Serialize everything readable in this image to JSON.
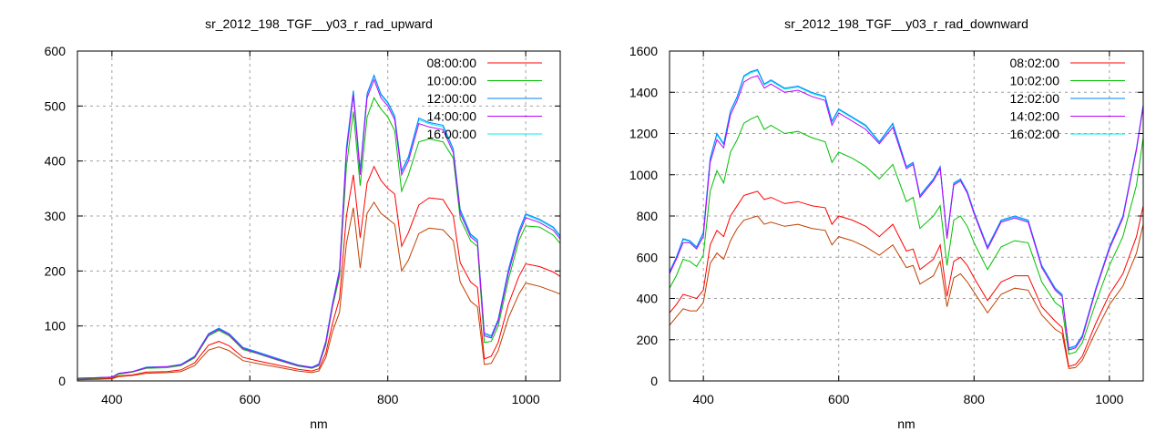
{
  "chart_data": [
    {
      "type": "line",
      "title": "sr_2012_198_TGF__y03_r_rad_upward",
      "xlabel": "nm",
      "ylabel": "",
      "xlim": [
        350,
        1050
      ],
      "ylim": [
        0,
        600
      ],
      "xticks": [
        400,
        600,
        800,
        1000
      ],
      "yticks": [
        0,
        100,
        200,
        300,
        400,
        500,
        600
      ],
      "grid": true,
      "legend_position": "top-right",
      "x": [
        350,
        380,
        400,
        410,
        430,
        450,
        480,
        500,
        520,
        540,
        555,
        570,
        590,
        610,
        640,
        670,
        690,
        700,
        710,
        720,
        730,
        740,
        750,
        760,
        770,
        780,
        790,
        800,
        810,
        820,
        830,
        845,
        860,
        880,
        895,
        905,
        920,
        930,
        940,
        950,
        960,
        975,
        990,
        1000,
        1020,
        1040,
        1050
      ],
      "series": [
        {
          "name": "16:00:00",
          "color": "#00eeee",
          "values": [
            5,
            6,
            7,
            14,
            17,
            25,
            26,
            30,
            45,
            85,
            95,
            85,
            60,
            52,
            40,
            28,
            24,
            30,
            70,
            140,
            200,
            420,
            525,
            380,
            520,
            555,
            520,
            505,
            480,
            380,
            405,
            475,
            468,
            462,
            420,
            310,
            265,
            255,
            85,
            80,
            110,
            200,
            270,
            302,
            292,
            278,
            262
          ]
        },
        {
          "name": "",
          "color": "#c04000",
          "values": [
            2,
            3,
            4,
            8,
            10,
            14,
            15,
            17,
            28,
            56,
            62,
            55,
            37,
            32,
            25,
            18,
            15,
            18,
            42,
            90,
            125,
            250,
            315,
            205,
            305,
            325,
            305,
            295,
            285,
            200,
            220,
            268,
            278,
            275,
            255,
            180,
            145,
            135,
            30,
            32,
            55,
            115,
            158,
            178,
            172,
            163,
            158
          ]
        },
        {
          "name": "08:00:00",
          "color": "#ff0000",
          "values": [
            3,
            4,
            5,
            9,
            11,
            16,
            17,
            20,
            33,
            65,
            72,
            64,
            43,
            37,
            29,
            21,
            18,
            22,
            50,
            105,
            150,
            300,
            375,
            260,
            360,
            390,
            365,
            350,
            340,
            245,
            270,
            320,
            333,
            330,
            300,
            215,
            180,
            170,
            40,
            45,
            70,
            140,
            190,
            213,
            208,
            198,
            190
          ]
        },
        {
          "name": "10:00:00",
          "color": "#00c000",
          "values": [
            4,
            5,
            6,
            12,
            16,
            23,
            24,
            28,
            42,
            82,
            92,
            82,
            57,
            50,
            38,
            27,
            23,
            28,
            65,
            135,
            190,
            390,
            490,
            355,
            480,
            515,
            495,
            480,
            455,
            345,
            375,
            435,
            440,
            435,
            405,
            295,
            255,
            245,
            70,
            72,
            100,
            185,
            255,
            282,
            280,
            265,
            250
          ]
        },
        {
          "name": "12:00:00",
          "color": "#0080ff",
          "values": [
            5,
            6,
            7,
            14,
            17,
            25,
            26,
            30,
            45,
            86,
            96,
            86,
            61,
            53,
            41,
            29,
            25,
            31,
            72,
            142,
            203,
            425,
            528,
            383,
            523,
            556,
            522,
            507,
            482,
            382,
            408,
            478,
            470,
            465,
            422,
            312,
            267,
            257,
            87,
            82,
            112,
            203,
            273,
            304,
            294,
            280,
            264
          ]
        },
        {
          "name": "14:00:00",
          "color": "#c000ff",
          "values": [
            5,
            6,
            7,
            14,
            17,
            24,
            26,
            29,
            44,
            84,
            94,
            84,
            59,
            51,
            39,
            28,
            24,
            29,
            69,
            138,
            198,
            415,
            520,
            375,
            515,
            548,
            515,
            500,
            475,
            375,
            400,
            468,
            462,
            457,
            415,
            305,
            262,
            252,
            82,
            78,
            108,
            196,
            266,
            297,
            288,
            274,
            258
          ]
        }
      ]
    },
    {
      "type": "line",
      "title": "sr_2012_198_TGF__y03_r_rad_downward",
      "xlabel": "nm",
      "ylabel": "",
      "xlim": [
        350,
        1050
      ],
      "ylim": [
        0,
        1600
      ],
      "xticks": [
        400,
        600,
        800,
        1000
      ],
      "yticks": [
        0,
        200,
        400,
        600,
        800,
        1000,
        1200,
        1400,
        1600
      ],
      "grid": true,
      "legend_position": "top-right",
      "x": [
        350,
        360,
        370,
        380,
        390,
        400,
        410,
        420,
        430,
        440,
        450,
        460,
        470,
        480,
        490,
        500,
        520,
        540,
        560,
        580,
        590,
        600,
        620,
        640,
        660,
        680,
        700,
        710,
        720,
        740,
        750,
        760,
        770,
        780,
        790,
        800,
        820,
        840,
        860,
        880,
        900,
        920,
        930,
        940,
        950,
        960,
        980,
        1000,
        1020,
        1040,
        1050
      ],
      "series": [
        {
          "name": "16:02:00",
          "color": "#00eeee",
          "values": [
            525,
            595,
            685,
            675,
            645,
            715,
            1075,
            1195,
            1145,
            1305,
            1375,
            1475,
            1495,
            1505,
            1435,
            1455,
            1415,
            1425,
            1395,
            1375,
            1255,
            1315,
            1275,
            1235,
            1155,
            1245,
            1035,
            1055,
            895,
            975,
            1035,
            695,
            955,
            975,
            915,
            815,
            645,
            775,
            795,
            775,
            555,
            445,
            415,
            155,
            165,
            215,
            445,
            645,
            795,
            1125,
            1335
          ]
        },
        {
          "name": "",
          "color": "#c04000",
          "values": [
            270,
            310,
            350,
            340,
            340,
            380,
            570,
            620,
            590,
            680,
            740,
            780,
            790,
            800,
            760,
            770,
            750,
            760,
            740,
            730,
            660,
            700,
            680,
            650,
            610,
            660,
            550,
            560,
            470,
            510,
            580,
            360,
            500,
            520,
            480,
            430,
            330,
            420,
            450,
            440,
            320,
            250,
            230,
            60,
            65,
            100,
            240,
            370,
            460,
            620,
            760
          ]
        },
        {
          "name": "08:02:00",
          "color": "#ff0000",
          "values": [
            330,
            370,
            420,
            410,
            400,
            440,
            660,
            730,
            700,
            800,
            850,
            900,
            910,
            920,
            880,
            890,
            860,
            870,
            850,
            840,
            760,
            800,
            780,
            750,
            700,
            760,
            630,
            640,
            540,
            590,
            660,
            410,
            580,
            600,
            560,
            500,
            390,
            480,
            510,
            510,
            360,
            290,
            260,
            70,
            80,
            120,
            280,
            420,
            520,
            700,
            850
          ]
        },
        {
          "name": "10:02:00",
          "color": "#00c000",
          "values": [
            450,
            510,
            590,
            580,
            555,
            610,
            920,
            1020,
            960,
            1110,
            1170,
            1250,
            1270,
            1285,
            1220,
            1240,
            1200,
            1210,
            1180,
            1160,
            1060,
            1110,
            1080,
            1040,
            980,
            1050,
            870,
            890,
            740,
            800,
            850,
            560,
            780,
            800,
            750,
            670,
            540,
            650,
            680,
            670,
            480,
            380,
            355,
            130,
            140,
            185,
            380,
            560,
            700,
            950,
            1180
          ]
        },
        {
          "name": "12:02:00",
          "color": "#0080ff",
          "values": [
            530,
            600,
            690,
            680,
            650,
            720,
            1080,
            1200,
            1150,
            1310,
            1380,
            1480,
            1500,
            1510,
            1440,
            1460,
            1420,
            1430,
            1400,
            1380,
            1260,
            1320,
            1280,
            1240,
            1160,
            1250,
            1040,
            1060,
            900,
            980,
            1040,
            700,
            960,
            980,
            920,
            820,
            650,
            780,
            800,
            780,
            560,
            450,
            420,
            160,
            170,
            220,
            450,
            650,
            800,
            1130,
            1340
          ]
        },
        {
          "name": "14:02:00",
          "color": "#c000ff",
          "values": [
            520,
            590,
            670,
            670,
            640,
            700,
            1060,
            1170,
            1130,
            1290,
            1360,
            1450,
            1470,
            1480,
            1420,
            1440,
            1400,
            1410,
            1380,
            1360,
            1240,
            1300,
            1260,
            1220,
            1150,
            1230,
            1030,
            1050,
            890,
            970,
            1030,
            690,
            950,
            970,
            910,
            810,
            640,
            770,
            790,
            770,
            550,
            440,
            410,
            150,
            160,
            210,
            440,
            640,
            790,
            1120,
            1330
          ]
        }
      ]
    }
  ],
  "legend_order": [
    "08",
    "10",
    "12",
    "14",
    "16"
  ]
}
